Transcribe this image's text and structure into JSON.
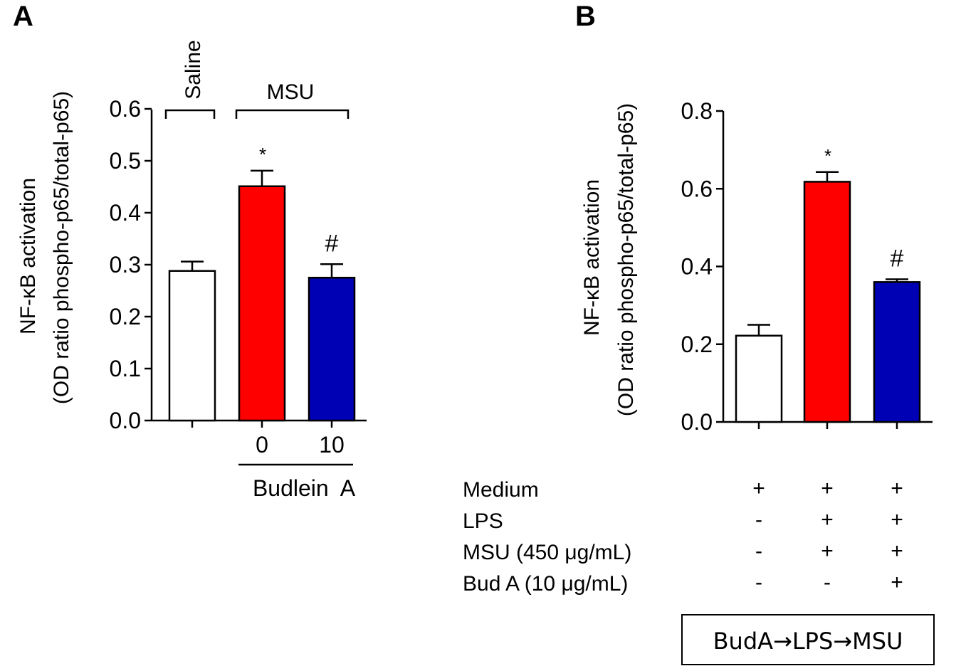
{
  "colors": {
    "saline": "#ffffff",
    "msu": "#ff0000",
    "buda": "#0000b4",
    "stroke": "#000000"
  },
  "chart_data": [
    {
      "panel": "A",
      "type": "bar",
      "ylabel_line1": "NF-κB activation",
      "ylabel_line2": "(OD ratio phospho-p65/total-p65)",
      "ylim": [
        0,
        0.6
      ],
      "yticks": [
        "0.0",
        "0.1",
        "0.2",
        "0.3",
        "0.4",
        "0.5",
        "0.6"
      ],
      "categories": [
        "",
        "0",
        "10"
      ],
      "values": [
        0.288,
        0.451,
        0.275
      ],
      "errors": [
        0.018,
        0.03,
        0.026
      ],
      "significance": [
        "",
        "*",
        "#"
      ],
      "bar_colors": [
        "#ffffff",
        "#ff0000",
        "#0000b4"
      ],
      "group_labels": {
        "saline": "Saline",
        "msu": "MSU"
      },
      "xlabel": "Budlein  A"
    },
    {
      "panel": "B",
      "type": "bar",
      "ylabel_line1": "NF-κB activation",
      "ylabel_line2": "(OD ratio phospho-p65/total-p65)",
      "ylim": [
        0,
        0.8
      ],
      "yticks": [
        "0.0",
        "0.2",
        "0.4",
        "0.6",
        "0.8"
      ],
      "values": [
        0.222,
        0.618,
        0.36
      ],
      "errors": [
        0.028,
        0.025,
        0.007
      ],
      "significance": [
        "",
        "*",
        "#"
      ],
      "bar_colors": [
        "#ffffff",
        "#ff0000",
        "#0000b4"
      ],
      "treatment_table": [
        {
          "label": "Medium",
          "marks": [
            "+",
            "+",
            "+"
          ]
        },
        {
          "label": "LPS",
          "marks": [
            "-",
            "+",
            "+"
          ]
        },
        {
          "label": "MSU (450 μg/mL)",
          "marks": [
            "-",
            "+",
            "+"
          ]
        },
        {
          "label": "Bud A (10 μg/mL)",
          "marks": [
            "-",
            "-",
            "+"
          ]
        }
      ],
      "protocol_box": "BudA→LPS→MSU"
    }
  ]
}
